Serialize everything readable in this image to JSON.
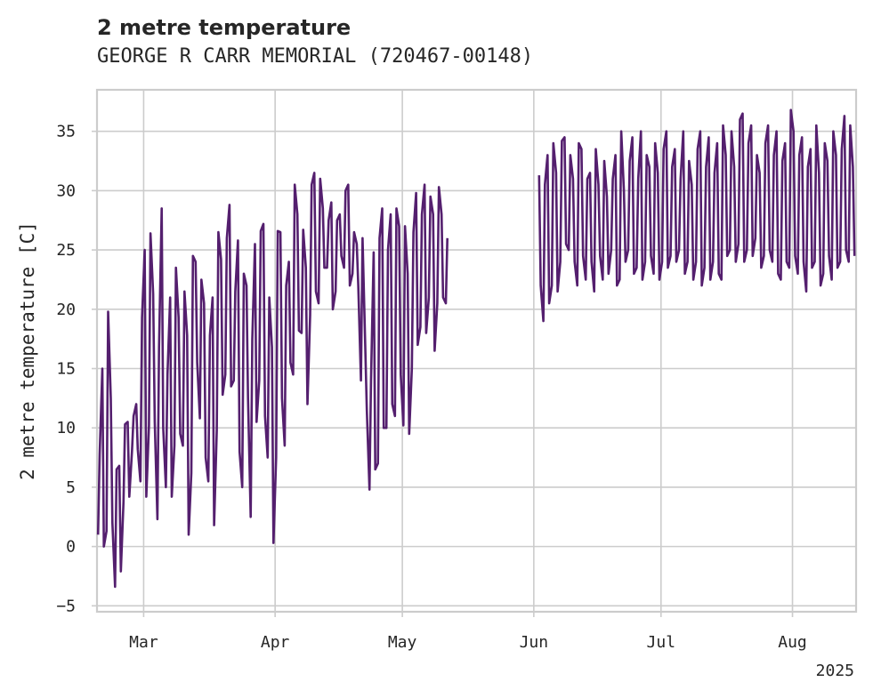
{
  "chart_data": {
    "type": "line",
    "title": "2 metre temperature",
    "subtitle": "GEORGE R CARR MEMORIAL (720467-00148)",
    "ylabel": "2 metre temperature [C]",
    "xlabel": "",
    "year_label": "2025",
    "xlim": [
      "2025-02-18",
      "2025-08-16"
    ],
    "ylim": [
      -5.5,
      38.5
    ],
    "grid": true,
    "legend": "none",
    "line_color": "#541f6e",
    "grid_color": "#cccccc",
    "x_ticks": [
      {
        "date": "2025-03-01",
        "label": "Mar"
      },
      {
        "date": "2025-04-01",
        "label": "Apr"
      },
      {
        "date": "2025-05-01",
        "label": "May"
      },
      {
        "date": "2025-06-01",
        "label": "Jun"
      },
      {
        "date": "2025-07-01",
        "label": "Jul"
      },
      {
        "date": "2025-08-01",
        "label": "Aug"
      }
    ],
    "y_ticks": [
      -5,
      0,
      5,
      10,
      15,
      20,
      25,
      30,
      35
    ],
    "series": [
      {
        "name": "",
        "daily_min_max": [
          [
            "2025-02-18",
            1.0,
            7.8
          ],
          [
            "2025-02-19",
            0.0,
            15.0
          ],
          [
            "2025-02-20",
            1.3,
            19.8
          ],
          [
            "2025-02-21",
            2.0,
            12.5
          ],
          [
            "2025-02-22",
            -3.4,
            6.5
          ],
          [
            "2025-02-23",
            -2.1,
            6.8
          ],
          [
            "2025-02-24",
            3.8,
            10.3
          ],
          [
            "2025-02-25",
            4.2,
            10.5
          ],
          [
            "2025-02-26",
            8.0,
            11.0
          ],
          [
            "2025-02-27",
            8.2,
            12.0
          ],
          [
            "2025-02-28",
            5.5,
            19.3
          ],
          [
            "2025-03-01",
            4.2,
            25.0
          ],
          [
            "2025-03-02",
            10.2,
            26.4
          ],
          [
            "2025-03-03",
            10.5,
            21.3
          ],
          [
            "2025-03-04",
            2.3,
            16.8
          ],
          [
            "2025-03-05",
            10.0,
            28.5
          ],
          [
            "2025-03-06",
            5.0,
            14.5
          ],
          [
            "2025-03-07",
            4.2,
            21.0
          ],
          [
            "2025-03-08",
            8.5,
            23.5
          ],
          [
            "2025-03-09",
            9.5,
            19.3
          ],
          [
            "2025-03-10",
            8.5,
            21.5
          ],
          [
            "2025-03-11",
            1.0,
            17.8
          ],
          [
            "2025-03-12",
            6.2,
            24.5
          ],
          [
            "2025-03-13",
            15.5,
            24.0
          ],
          [
            "2025-03-14",
            10.8,
            22.5
          ],
          [
            "2025-03-15",
            7.5,
            20.5
          ],
          [
            "2025-03-16",
            5.5,
            17.8
          ],
          [
            "2025-03-17",
            1.8,
            21.0
          ],
          [
            "2025-03-18",
            9.8,
            26.5
          ],
          [
            "2025-03-19",
            12.8,
            24.2
          ],
          [
            "2025-03-20",
            14.5,
            26.0
          ],
          [
            "2025-03-21",
            13.5,
            28.8
          ],
          [
            "2025-03-22",
            14.0,
            21.5
          ],
          [
            "2025-03-23",
            8.0,
            25.8
          ],
          [
            "2025-03-24",
            5.0,
            23.0
          ],
          [
            "2025-03-25",
            12.5,
            22.0
          ],
          [
            "2025-03-26",
            2.5,
            17.5
          ],
          [
            "2025-03-27",
            10.5,
            25.5
          ],
          [
            "2025-03-28",
            14.0,
            26.6
          ],
          [
            "2025-03-29",
            11.0,
            27.2
          ],
          [
            "2025-03-30",
            7.5,
            21.0
          ],
          [
            "2025-03-31",
            0.3,
            16.8
          ],
          [
            "2025-04-01",
            7.5,
            26.6
          ],
          [
            "2025-04-02",
            12.5,
            26.5
          ],
          [
            "2025-04-03",
            8.5,
            22.0
          ],
          [
            "2025-04-04",
            15.5,
            24.0
          ],
          [
            "2025-04-05",
            14.5,
            30.5
          ],
          [
            "2025-04-06",
            18.2,
            28.0
          ],
          [
            "2025-04-07",
            18.0,
            26.7
          ],
          [
            "2025-04-08",
            12.0,
            23.5
          ],
          [
            "2025-04-09",
            19.5,
            30.5
          ],
          [
            "2025-04-10",
            21.5,
            31.5
          ],
          [
            "2025-04-11",
            20.5,
            31.0
          ],
          [
            "2025-04-12",
            23.5,
            28.5
          ],
          [
            "2025-04-13",
            23.5,
            27.5
          ],
          [
            "2025-04-14",
            20.0,
            29.0
          ],
          [
            "2025-04-15",
            21.5,
            27.5
          ],
          [
            "2025-04-16",
            24.5,
            28.0
          ],
          [
            "2025-04-17",
            23.5,
            30.0
          ],
          [
            "2025-04-18",
            22.0,
            30.5
          ],
          [
            "2025-04-19",
            23.0,
            26.5
          ],
          [
            "2025-04-20",
            22.0,
            25.5
          ],
          [
            "2025-04-21",
            14.0,
            26.0
          ],
          [
            "2025-04-22",
            11.5,
            17.0
          ],
          [
            "2025-04-23",
            4.8,
            14.0
          ],
          [
            "2025-04-24",
            6.5,
            24.8
          ],
          [
            "2025-04-25",
            7.0,
            26.0
          ],
          [
            "2025-04-26",
            10.0,
            28.5
          ],
          [
            "2025-04-27",
            10.0,
            25.0
          ],
          [
            "2025-04-28",
            12.0,
            28.0
          ],
          [
            "2025-04-29",
            11.0,
            28.5
          ],
          [
            "2025-04-30",
            14.5,
            27.0
          ],
          [
            "2025-05-01",
            10.2,
            27.0
          ],
          [
            "2025-05-02",
            9.5,
            23.0
          ],
          [
            "2025-05-03",
            15.0,
            26.5
          ],
          [
            "2025-05-04",
            17.0,
            29.8
          ],
          [
            "2025-05-05",
            18.5,
            28.0
          ],
          [
            "2025-05-06",
            18.0,
            30.5
          ],
          [
            "2025-05-07",
            21.0,
            29.5
          ],
          [
            "2025-05-08",
            16.5,
            28.0
          ],
          [
            "2025-05-09",
            20.5,
            30.3
          ],
          [
            "2025-05-10",
            21.0,
            28.0
          ],
          [
            "2025-05-11",
            20.5,
            26.0
          ],
          [
            "2025-06-02",
            22.0,
            31.3
          ],
          [
            "2025-06-03",
            19.0,
            30.5
          ],
          [
            "2025-06-04",
            20.5,
            33.0
          ],
          [
            "2025-06-05",
            22.0,
            34.0
          ],
          [
            "2025-06-06",
            21.5,
            31.5
          ],
          [
            "2025-06-07",
            24.0,
            34.2
          ],
          [
            "2025-06-08",
            25.5,
            34.5
          ],
          [
            "2025-06-09",
            25.0,
            33.0
          ],
          [
            "2025-06-10",
            24.0,
            31.0
          ],
          [
            "2025-06-11",
            22.0,
            34.0
          ],
          [
            "2025-06-12",
            24.5,
            33.5
          ],
          [
            "2025-06-13",
            22.5,
            31.0
          ],
          [
            "2025-06-14",
            24.0,
            31.5
          ],
          [
            "2025-06-15",
            21.5,
            33.5
          ],
          [
            "2025-06-16",
            24.5,
            30.5
          ],
          [
            "2025-06-17",
            22.5,
            32.5
          ],
          [
            "2025-06-18",
            23.0,
            29.5
          ],
          [
            "2025-06-19",
            25.0,
            31.0
          ],
          [
            "2025-06-20",
            22.0,
            33.0
          ],
          [
            "2025-06-21",
            22.5,
            35.0
          ],
          [
            "2025-06-22",
            24.0,
            30.0
          ],
          [
            "2025-06-23",
            25.0,
            32.5
          ],
          [
            "2025-06-24",
            23.0,
            34.5
          ],
          [
            "2025-06-25",
            23.5,
            31.0
          ],
          [
            "2025-06-26",
            22.5,
            35.0
          ],
          [
            "2025-06-27",
            24.0,
            33.0
          ],
          [
            "2025-06-28",
            24.5,
            32.0
          ],
          [
            "2025-06-29",
            23.0,
            34.0
          ],
          [
            "2025-06-30",
            22.5,
            31.5
          ],
          [
            "2025-07-01",
            24.0,
            33.5
          ],
          [
            "2025-07-02",
            23.5,
            35.0
          ],
          [
            "2025-07-03",
            24.5,
            32.0
          ],
          [
            "2025-07-04",
            24.0,
            33.5
          ],
          [
            "2025-07-05",
            25.0,
            31.0
          ],
          [
            "2025-07-06",
            23.0,
            35.0
          ],
          [
            "2025-07-07",
            24.0,
            32.5
          ],
          [
            "2025-07-08",
            22.5,
            30.5
          ],
          [
            "2025-07-09",
            24.0,
            33.5
          ],
          [
            "2025-07-10",
            22.0,
            35.0
          ],
          [
            "2025-07-11",
            23.5,
            32.0
          ],
          [
            "2025-07-12",
            22.5,
            34.5
          ],
          [
            "2025-07-13",
            24.0,
            31.5
          ],
          [
            "2025-07-14",
            23.0,
            34.0
          ],
          [
            "2025-07-15",
            22.5,
            35.5
          ],
          [
            "2025-07-16",
            24.5,
            33.0
          ],
          [
            "2025-07-17",
            25.0,
            35.0
          ],
          [
            "2025-07-18",
            24.0,
            32.0
          ],
          [
            "2025-07-19",
            25.5,
            36.0
          ],
          [
            "2025-07-20",
            24.0,
            36.5
          ],
          [
            "2025-07-21",
            25.0,
            34.0
          ],
          [
            "2025-07-22",
            24.5,
            35.5
          ],
          [
            "2025-07-23",
            26.0,
            33.0
          ],
          [
            "2025-07-24",
            23.5,
            31.5
          ],
          [
            "2025-07-25",
            24.5,
            34.0
          ],
          [
            "2025-07-26",
            25.0,
            35.5
          ],
          [
            "2025-07-27",
            24.0,
            33.0
          ],
          [
            "2025-07-28",
            23.0,
            35.0
          ],
          [
            "2025-07-29",
            22.5,
            32.5
          ],
          [
            "2025-07-30",
            24.0,
            34.0
          ],
          [
            "2025-07-31",
            23.5,
            36.8
          ],
          [
            "2025-08-01",
            24.5,
            35.0
          ],
          [
            "2025-08-02",
            23.0,
            33.0
          ],
          [
            "2025-08-03",
            24.0,
            34.5
          ],
          [
            "2025-08-04",
            21.5,
            32.0
          ],
          [
            "2025-08-05",
            23.5,
            33.5
          ],
          [
            "2025-08-06",
            24.0,
            35.5
          ],
          [
            "2025-08-07",
            22.0,
            31.5
          ],
          [
            "2025-08-08",
            23.0,
            34.0
          ],
          [
            "2025-08-09",
            24.5,
            32.5
          ],
          [
            "2025-08-10",
            22.5,
            35.0
          ],
          [
            "2025-08-11",
            23.5,
            33.0
          ],
          [
            "2025-08-12",
            24.0,
            33.5
          ],
          [
            "2025-08-13",
            25.0,
            36.3
          ],
          [
            "2025-08-14",
            24.0,
            35.5
          ],
          [
            "2025-08-15",
            24.5,
            32.0
          ]
        ]
      }
    ]
  }
}
